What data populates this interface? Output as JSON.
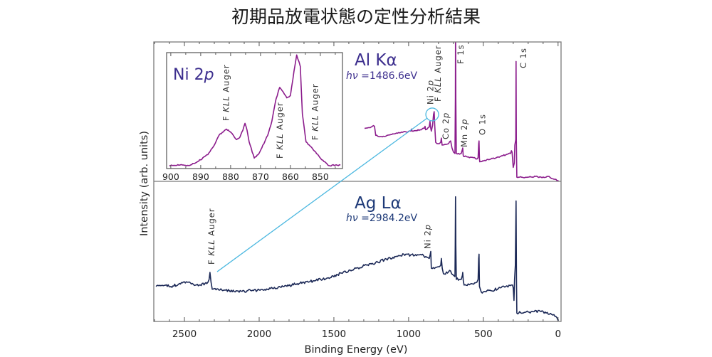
{
  "chart_data": [
    {
      "panel": "upper",
      "type": "line",
      "title": "初期品放電状態の定性分析結果",
      "ylabel": "Intensity (arb. units)",
      "xlim": [
        2705,
        -20
      ],
      "ylim": [
        0,
        1
      ],
      "x_ticks": [
        2500,
        2000,
        1500,
        1000,
        500,
        0
      ],
      "x_minor_step": 100,
      "grid": false,
      "source": "Al Kα",
      "hv_symbol": "hν",
      "hv_value": " =1486.6eV",
      "label_color": "#3d2f8e",
      "series": [
        {
          "name": "Al Kα survey",
          "color": "#8b1c8c",
          "points": [
            [
              1295,
              0.38
            ],
            [
              1270,
              0.385
            ],
            [
              1250,
              0.39
            ],
            [
              1235,
              0.4
            ],
            [
              1228,
              0.395
            ],
            [
              1220,
              0.33
            ],
            [
              1195,
              0.32
            ],
            [
              1150,
              0.325
            ],
            [
              1100,
              0.34
            ],
            [
              1067,
              0.35
            ],
            [
              1020,
              0.355
            ],
            [
              985,
              0.36
            ],
            [
              981,
              0.375
            ],
            [
              976,
              0.36
            ],
            [
              924,
              0.37
            ],
            [
              895,
              0.38
            ],
            [
              890,
              0.395
            ],
            [
              886,
              0.37
            ],
            [
              876,
              0.375
            ],
            [
              862,
              0.39
            ],
            [
              857,
              0.43
            ],
            [
              852,
              0.38
            ],
            [
              848,
              0.36
            ],
            [
              840,
              0.4
            ],
            [
              833,
              0.48
            ],
            [
              829,
              0.5
            ],
            [
              825,
              0.4
            ],
            [
              819,
              0.28
            ],
            [
              805,
              0.27
            ],
            [
              795,
              0.27
            ],
            [
              785,
              0.28
            ],
            [
              781,
              0.31
            ],
            [
              776,
              0.26
            ],
            [
              750,
              0.265
            ],
            [
              733,
              0.27
            ],
            [
              725,
              0.285
            ],
            [
              719,
              0.29
            ],
            [
              710,
              0.24
            ],
            [
              700,
              0.21
            ],
            [
              690,
              0.2
            ],
            [
              687,
              0.6
            ],
            [
              686,
              1.12
            ],
            [
              684,
              0.6
            ],
            [
              681,
              0.2
            ],
            [
              660,
              0.195
            ],
            [
              648,
              0.2
            ],
            [
              640,
              0.23
            ],
            [
              638,
              0.24
            ],
            [
              635,
              0.19
            ],
            [
              633,
              0.18
            ],
            [
              600,
              0.175
            ],
            [
              567,
              0.17
            ],
            [
              543,
              0.16
            ],
            [
              535,
              0.17
            ],
            [
              531,
              0.27
            ],
            [
              529,
              0.29
            ],
            [
              526,
              0.16
            ],
            [
              524,
              0.14
            ],
            [
              450,
              0.16
            ],
            [
              400,
              0.175
            ],
            [
              350,
              0.19
            ],
            [
              318,
              0.2
            ],
            [
              312,
              0.22
            ],
            [
              308,
              0.21
            ],
            [
              300,
              0.1
            ],
            [
              293,
              0.13
            ],
            [
              289,
              0.26
            ],
            [
              283,
              0.3
            ],
            [
              281,
              0.86
            ],
            [
              279,
              0.3
            ],
            [
              276,
              0.03
            ],
            [
              200,
              0.03
            ],
            [
              150,
              0.035
            ],
            [
              114,
              0.03
            ],
            [
              80,
              0.03
            ],
            [
              60,
              0.035
            ],
            [
              43,
              0.02
            ],
            [
              20,
              0.015
            ],
            [
              -5,
              0.0
            ]
          ]
        }
      ],
      "annotations": [
        {
          "segments": [
            "Ni 2",
            "p"
          ],
          "x_eV": 855
        },
        {
          "segments": [
            "F ",
            "KLL",
            " Auger"
          ],
          "x_eV": 832
        },
        {
          "segments": [
            "Co 2",
            "p"
          ],
          "x_eV": 780
        },
        {
          "segments": [
            "F 1s"
          ],
          "x_eV": 686
        },
        {
          "segments": [
            "Mn 2",
            "p"
          ],
          "x_eV": 642
        },
        {
          "segments": [
            "O 1s"
          ],
          "x_eV": 531
        },
        {
          "segments": [
            "C 1s"
          ],
          "x_eV": 285
        }
      ],
      "callout": {
        "color": "#4cb8e0",
        "circle": {
          "panel": "upper",
          "x_eV": 842,
          "y": 0.48
        },
        "target": {
          "panel": "lower",
          "x_eV": 2281,
          "y": 0.355
        }
      }
    },
    {
      "panel": "lower",
      "type": "line",
      "xlabel": "Binding Energy (eV)",
      "xlim": [
        2705,
        -20
      ],
      "ylim": [
        0,
        1
      ],
      "x_ticks": [
        2500,
        2000,
        1500,
        1000,
        500,
        0
      ],
      "x_minor_step": 100,
      "grid": false,
      "source": "Ag Lα",
      "hv_symbol": "hν",
      "hv_value": " =2984.2eV",
      "label_color": "#1e3a78",
      "series": [
        {
          "name": "Ag Lα survey",
          "color": "#1c2957",
          "points": [
            [
              2690,
              0.25
            ],
            [
              2640,
              0.255
            ],
            [
              2590,
              0.25
            ],
            [
              2540,
              0.265
            ],
            [
              2481,
              0.28
            ],
            [
              2440,
              0.265
            ],
            [
              2400,
              0.26
            ],
            [
              2350,
              0.27
            ],
            [
              2335,
              0.3
            ],
            [
              2329,
              0.35
            ],
            [
              2322,
              0.28
            ],
            [
              2314,
              0.23
            ],
            [
              2250,
              0.225
            ],
            [
              2200,
              0.22
            ],
            [
              2114,
              0.215
            ],
            [
              2000,
              0.225
            ],
            [
              1924,
              0.235
            ],
            [
              1833,
              0.25
            ],
            [
              1733,
              0.27
            ],
            [
              1640,
              0.29
            ],
            [
              1543,
              0.31
            ],
            [
              1450,
              0.345
            ],
            [
              1352,
              0.38
            ],
            [
              1250,
              0.41
            ],
            [
              1162,
              0.44
            ],
            [
              1080,
              0.465
            ],
            [
              1019,
              0.48
            ],
            [
              960,
              0.47
            ],
            [
              900,
              0.47
            ],
            [
              870,
              0.455
            ],
            [
              862,
              0.45
            ],
            [
              855,
              0.48
            ],
            [
              852,
              0.5
            ],
            [
              848,
              0.38
            ],
            [
              820,
              0.385
            ],
            [
              795,
              0.39
            ],
            [
              785,
              0.4
            ],
            [
              781,
              0.45
            ],
            [
              775,
              0.38
            ],
            [
              767,
              0.34
            ],
            [
              740,
              0.345
            ],
            [
              719,
              0.36
            ],
            [
              712,
              0.34
            ],
            [
              700,
              0.33
            ],
            [
              690,
              0.32
            ],
            [
              688,
              0.55
            ],
            [
              686,
              0.89
            ],
            [
              684,
              0.55
            ],
            [
              681,
              0.3
            ],
            [
              660,
              0.3
            ],
            [
              648,
              0.3
            ],
            [
              640,
              0.33
            ],
            [
              638,
              0.35
            ],
            [
              634,
              0.29
            ],
            [
              629,
              0.26
            ],
            [
              580,
              0.27
            ],
            [
              543,
              0.28
            ],
            [
              535,
              0.3
            ],
            [
              531,
              0.45
            ],
            [
              529,
              0.48
            ],
            [
              526,
              0.25
            ],
            [
              514,
              0.21
            ],
            [
              450,
              0.22
            ],
            [
              400,
              0.235
            ],
            [
              350,
              0.25
            ],
            [
              314,
              0.26
            ],
            [
              305,
              0.26
            ],
            [
              300,
              0.24
            ],
            [
              295,
              0.15
            ],
            [
              291,
              0.3
            ],
            [
              286,
              0.4
            ],
            [
              281,
              0.86
            ],
            [
              278,
              0.3
            ],
            [
              276,
              0.06
            ],
            [
              220,
              0.065
            ],
            [
              160,
              0.07
            ],
            [
              114,
              0.07
            ],
            [
              80,
              0.06
            ],
            [
              43,
              0.05
            ],
            [
              20,
              0.035
            ],
            [
              -5,
              0.01
            ]
          ]
        }
      ],
      "annotations": [
        {
          "segments": [
            "F ",
            "KLL",
            " Auger"
          ],
          "x_eV": 2320
        },
        {
          "segments": [
            "Ni 2",
            "p"
          ],
          "x_eV": 855
        }
      ]
    },
    {
      "panel": "inset",
      "type": "line",
      "title_segments": [
        "Ni 2",
        "p"
      ],
      "label_color": "#3d2f8e",
      "xlim": [
        901.4,
        842.6
      ],
      "ylim": [
        0,
        1
      ],
      "x_ticks": [
        900,
        890,
        880,
        870,
        860,
        850
      ],
      "x_minor_step": 5,
      "grid": false,
      "series": [
        {
          "name": "Ni 2p (Al Kα)",
          "color": "#8b1c8c",
          "points": [
            [
              900.5,
              0.025
            ],
            [
              897,
              0.03
            ],
            [
              894,
              0.025
            ],
            [
              891,
              0.06
            ],
            [
              887.6,
              0.12
            ],
            [
              885.5,
              0.2
            ],
            [
              883.8,
              0.29
            ],
            [
              881.4,
              0.34
            ],
            [
              879.8,
              0.31
            ],
            [
              878,
              0.25
            ],
            [
              876.9,
              0.27
            ],
            [
              875.9,
              0.33
            ],
            [
              875.2,
              0.39
            ],
            [
              874.5,
              0.33
            ],
            [
              873.8,
              0.23
            ],
            [
              872.1,
              0.09
            ],
            [
              870.5,
              0.13
            ],
            [
              868.6,
              0.23
            ],
            [
              867.3,
              0.31
            ],
            [
              866.2,
              0.41
            ],
            [
              864.8,
              0.6
            ],
            [
              863.6,
              0.7
            ],
            [
              862.4,
              0.66
            ],
            [
              861.2,
              0.61
            ],
            [
              860,
              0.63
            ],
            [
              858.8,
              0.84
            ],
            [
              857.9,
              0.98
            ],
            [
              856.7,
              0.88
            ],
            [
              856,
              0.47
            ],
            [
              854.8,
              0.23
            ],
            [
              853.3,
              0.19
            ],
            [
              851.9,
              0.15
            ],
            [
              850.3,
              0.1
            ],
            [
              848.8,
              0.06
            ],
            [
              847.1,
              0.025
            ],
            [
              845,
              0.03
            ],
            [
              843.3,
              0.03
            ]
          ]
        }
      ],
      "annotations": [
        {
          "segments": [
            "F ",
            "KLL",
            " Auger"
          ],
          "x_eV": 881.5
        },
        {
          "segments": [
            "F ",
            "KLL",
            " Auger"
          ],
          "x_eV": 863.5
        },
        {
          "segments": [
            "F ",
            "KLL",
            " Auger"
          ],
          "x_eV": 851.8
        }
      ]
    }
  ]
}
